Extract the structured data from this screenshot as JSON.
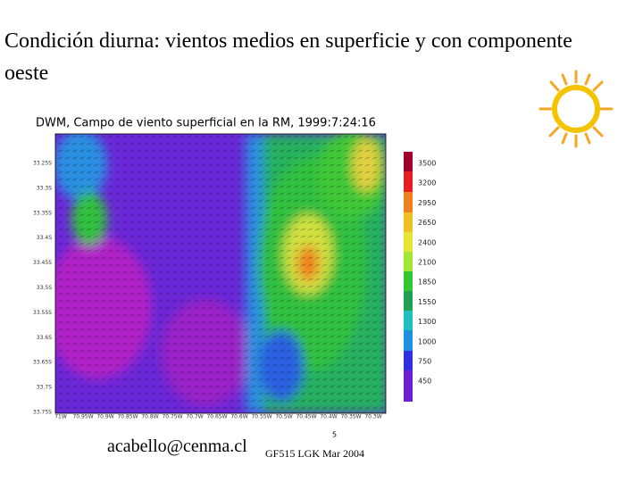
{
  "slide": {
    "title": "Condición diurna: vientos medios en superficie y con componente oeste",
    "map": {
      "title": "DWM, Campo de viento superficial en la RM, 1999:7:24:16",
      "lat_labels": [
        "33.25S",
        "33.3S",
        "33.35S",
        "33.4S",
        "33.45S",
        "33.5S",
        "33.55S",
        "33.6S",
        "33.65S",
        "33.7S",
        "33.75S"
      ],
      "lon_labels": [
        "71W",
        "70.95W",
        "70.9W",
        "70.85W",
        "70.8W",
        "70.75W",
        "70.7W",
        "70.65W",
        "70.6W",
        "70.55W",
        "70.5W",
        "70.45W",
        "70.4W",
        "70.35W",
        "70.3W"
      ],
      "legend_labels": [
        "3500",
        "3200",
        "2950",
        "2650",
        "2400",
        "2100",
        "1850",
        "1550",
        "1300",
        "1000",
        "750",
        "450"
      ],
      "vector_scale": "5"
    },
    "footer": {
      "email": "acabello@cenma.cl",
      "course": "GF515 LGK Mar 2004"
    }
  }
}
